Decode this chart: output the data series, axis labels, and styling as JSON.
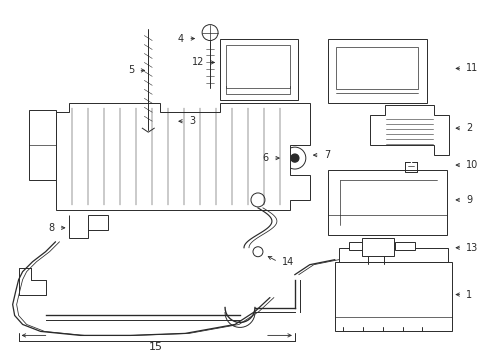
{
  "bg_color": "#ffffff",
  "lc": "#2a2a2a",
  "lw": 0.7,
  "figsize": [
    4.9,
    3.6
  ],
  "dpi": 100,
  "xlim": [
    0,
    490
  ],
  "ylim": [
    0,
    360
  ]
}
